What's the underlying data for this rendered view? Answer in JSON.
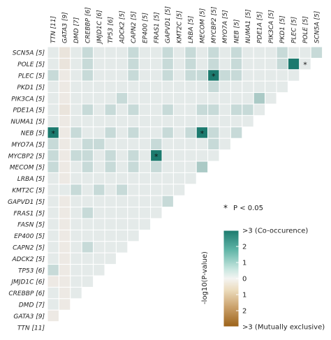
{
  "chart_data": {
    "type": "heatmap",
    "title": "",
    "rows": [
      "SCN5A [5]",
      "POLE [5]",
      "PLEC [5]",
      "PKD1 [5]",
      "PIK3CA [5]",
      "PDE1A [5]",
      "NUMA1 [5]",
      "NEB [5]",
      "MYO7A [5]",
      "MYCBP2 [5]",
      "MECOM [5]",
      "LRBA [5]",
      "KMT2C [5]",
      "GAPVD1 [5]",
      "FRAS1 [5]",
      "FASN [5]",
      "EP400 [5]",
      "CAPN2 [5]",
      "ADCK2 [5]",
      "TP53 [6]",
      "JMJD1C [6]",
      "CREBBP [6]",
      "DMD [7]",
      "GATA3 [9]",
      "TTN [11]"
    ],
    "columns": [
      "TTN [11]",
      "GATA3 [9]",
      "DMD [7]",
      "CREBBP [6]",
      "JMJD1C [6]",
      "TP53 [6]",
      "ADCK2 [5]",
      "CAPN2 [5]",
      "EP400 [5]",
      "FRAS1 [5]",
      "GAPVD1 [5]",
      "KMT2C [5]",
      "LRBA [5]",
      "MECOM [5]",
      "MYCBP2 [5]",
      "MYO7A [5]",
      "NEB [5]",
      "NUMA1 [5]",
      "PDE1A [5]",
      "PIK3CA [5]",
      "PKD1 [5]",
      "PLEC [5]",
      "POLE [5]",
      "SCN5A [5]"
    ],
    "values": [
      [
        0.2,
        -0.3,
        0.2,
        0.6,
        0.2,
        0.2,
        0.2,
        0.6,
        0.2,
        0.2,
        0.6,
        0.2,
        0.6,
        0.2,
        0.6,
        0.2,
        0.6,
        0.2,
        0.2,
        0.2,
        0.6,
        0.2,
        0.2,
        0.6
      ],
      [
        0.2,
        -0.3,
        0.2,
        0.6,
        0.2,
        0.2,
        0.2,
        0.6,
        0.2,
        0.2,
        0.6,
        0.2,
        0.6,
        0.2,
        0.6,
        0.2,
        0.6,
        0.2,
        0.2,
        0.2,
        0.6,
        3,
        0.2
      ],
      [
        0.6,
        -0.2,
        0.2,
        0.6,
        0.2,
        0.2,
        0.2,
        0.6,
        0.2,
        0.2,
        0.6,
        0.2,
        0.6,
        0.6,
        3,
        0.6,
        0.6,
        0.2,
        0.2,
        0.2,
        0.2,
        0.2
      ],
      [
        0.2,
        -0.2,
        0.2,
        0.2,
        0.2,
        0.2,
        0.2,
        0.2,
        0.2,
        0.2,
        0.2,
        0.2,
        0.2,
        0.2,
        0.6,
        0.2,
        0.2,
        0.2,
        0.2,
        0.2,
        0.2
      ],
      [
        0.2,
        -0.2,
        0.2,
        0.2,
        0.2,
        0.2,
        0.6,
        0.2,
        0.2,
        0.2,
        0.2,
        0.2,
        0.2,
        0.2,
        0.2,
        0.2,
        0.2,
        0.2,
        1.0,
        0.2
      ],
      [
        0.2,
        -0.3,
        0.2,
        0.6,
        0.2,
        0.6,
        0.2,
        0.6,
        0.2,
        0.2,
        0.6,
        0.2,
        0.2,
        0.6,
        0.6,
        0.2,
        0.6,
        0.6,
        0.2
      ],
      [
        0.2,
        -0.2,
        0.2,
        0.2,
        0.2,
        0.2,
        0.2,
        0.2,
        0.2,
        0.2,
        0.2,
        0.2,
        0.2,
        0.2,
        0.2,
        0.2,
        0.2,
        0.2
      ],
      [
        3,
        -0.2,
        0.6,
        0.2,
        0.2,
        0.6,
        0.2,
        0.6,
        0.2,
        0.2,
        0.6,
        0.2,
        0.6,
        3,
        0.6,
        0.2,
        0.6
      ],
      [
        0.6,
        -0.2,
        0.2,
        0.6,
        0.6,
        0.2,
        0.2,
        0.2,
        0.2,
        0.6,
        0.2,
        0.2,
        0.2,
        0.2,
        0.6,
        0.2
      ],
      [
        0.6,
        -0.2,
        0.6,
        0.6,
        0.2,
        0.6,
        0.2,
        0.6,
        0.2,
        3,
        0.2,
        0.2,
        0.2,
        0.2,
        0.2
      ],
      [
        0.6,
        -0.2,
        0.2,
        0.6,
        0.2,
        0.6,
        0.2,
        0.6,
        0.2,
        0.6,
        0.2,
        0.2,
        0.2,
        1.0
      ],
      [
        0.2,
        -0.2,
        0.2,
        0.2,
        0.2,
        0.2,
        0.2,
        0.2,
        0.2,
        0.2,
        0.2,
        0.2,
        0.2
      ],
      [
        0.2,
        0.2,
        0.6,
        0.2,
        0.6,
        0.2,
        0.6,
        0.2,
        0.2,
        0.2,
        0.2,
        0.2
      ],
      [
        0.2,
        -0.2,
        0.2,
        0.2,
        0.2,
        0.2,
        0.2,
        0.2,
        0.2,
        0.2,
        0.6
      ],
      [
        0.2,
        -0.2,
        0.2,
        0.6,
        0.2,
        0.2,
        0.2,
        0.2,
        0.2,
        0.2
      ],
      [
        0.2,
        -0.2,
        0.2,
        0.2,
        0.2,
        0.2,
        0.2,
        0.2,
        0.2
      ],
      [
        0.2,
        -0.2,
        0.2,
        0.2,
        0.2,
        0.2,
        0.2,
        0.2
      ],
      [
        0.2,
        -0.2,
        0.2,
        0.6,
        0.2,
        0.2,
        0.2
      ],
      [
        0.2,
        -0.2,
        0.2,
        0.2,
        0.2,
        0.2
      ],
      [
        0.6,
        -0.2,
        0.2,
        0.2,
        0.2
      ],
      [
        -0.2,
        -0.2,
        0.2,
        0.2
      ],
      [
        0.2,
        -0.2,
        0.2
      ],
      [
        0.2,
        -0.2
      ],
      [
        -0.2
      ]
    ],
    "significant": [
      [
        1,
        22
      ],
      [
        2,
        14
      ],
      [
        7,
        0
      ],
      [
        7,
        13
      ],
      [
        9,
        9
      ]
    ],
    "significance_label": "P < 0.05",
    "colorbar": {
      "label": "-log10(P-value)",
      "ticks": [
        ">3 (Co-occurence)",
        "2",
        "1",
        "0",
        "1",
        "2",
        ">3 (Mutually exclusive)"
      ],
      "range": [
        -3,
        3
      ]
    },
    "colors": {
      "co_occurrence": "#1c7a6e",
      "neutral": "#f2f2f2",
      "mutually_exclusive": "#a0661a"
    }
  }
}
